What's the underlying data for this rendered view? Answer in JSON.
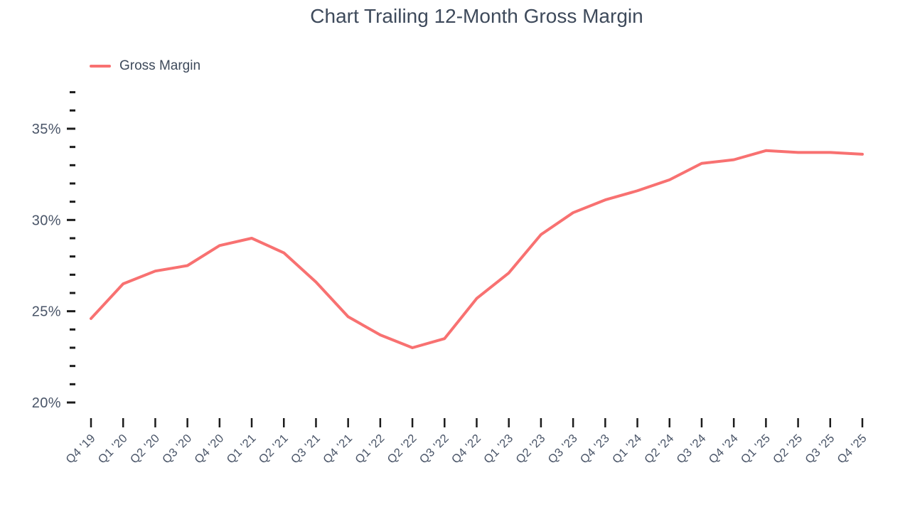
{
  "colors": {
    "title_text": "#3E4A5B",
    "axis_text": "#4A5568",
    "tick": "#1C1C1C",
    "background": "#FFFFFF"
  },
  "chart_data": {
    "type": "line",
    "title": "Chart Trailing 12-Month Gross Margin",
    "xlabel": "",
    "ylabel": "",
    "categories": [
      "Q4 '19",
      "Q1 '20",
      "Q2 '20",
      "Q3 '20",
      "Q4 '20",
      "Q1 '21",
      "Q2 '21",
      "Q3 '21",
      "Q4 '21",
      "Q1 '22",
      "Q2 '22",
      "Q3 '22",
      "Q4 '22",
      "Q1 '23",
      "Q2 '23",
      "Q3 '23",
      "Q4 '23",
      "Q1 '24",
      "Q2 '24",
      "Q3 '24",
      "Q4 '24",
      "Q1 '25",
      "Q2 '25",
      "Q3 '25",
      "Q4 '25"
    ],
    "series": [
      {
        "name": "Gross Margin",
        "color": "#F87171",
        "values": [
          24.6,
          26.5,
          27.2,
          27.5,
          28.6,
          29.0,
          28.2,
          26.6,
          24.7,
          23.7,
          23.0,
          23.5,
          25.7,
          27.1,
          29.2,
          30.4,
          31.1,
          31.6,
          32.2,
          33.1,
          33.3,
          33.8,
          33.7,
          33.7,
          33.6
        ]
      }
    ],
    "ylim": [
      20,
      37
    ],
    "ytick_step": 1,
    "yticks_labeled": [
      20,
      25,
      30,
      35
    ],
    "ytick_suffix": "%",
    "grid": false,
    "markers": false,
    "legend_position": "top-left",
    "x_label_rotation": -45
  }
}
